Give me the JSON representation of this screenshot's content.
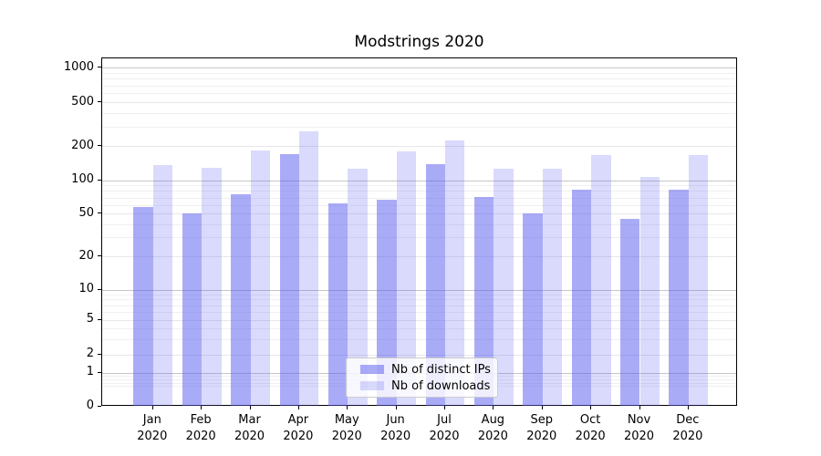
{
  "title": "Modstrings 2020",
  "chart_data": {
    "type": "bar",
    "title": "Modstrings 2020",
    "categories": [
      "Jan 2020",
      "Feb 2020",
      "Mar 2020",
      "Apr 2020",
      "May 2020",
      "Jun 2020",
      "Jul 2020",
      "Aug 2020",
      "Sep 2020",
      "Oct 2020",
      "Nov 2020",
      "Dec 2020"
    ],
    "series": [
      {
        "name": "Nb of distinct IPs",
        "color": "rgba(85,87,240,0.5)",
        "values": [
          57,
          50,
          75,
          170,
          62,
          67,
          139,
          71,
          50,
          82,
          45,
          82
        ]
      },
      {
        "name": "Nb of downloads",
        "color": "rgba(85,87,240,0.22)",
        "values": [
          137,
          128,
          185,
          272,
          127,
          180,
          224,
          126,
          126,
          166,
          108,
          166
        ]
      }
    ],
    "yscale": "symlog",
    "ylim": [
      0,
      1320
    ],
    "yticks": [
      0,
      1,
      2,
      5,
      10,
      20,
      50,
      100,
      200,
      500,
      1000
    ],
    "gridlines": {
      "major": [
        1,
        10,
        100,
        1000
      ],
      "mid": [
        2,
        5,
        20,
        50,
        200,
        500
      ],
      "minor": [
        0.6,
        0.7,
        0.8,
        0.9,
        3,
        4,
        6,
        7,
        8,
        9,
        30,
        40,
        60,
        70,
        80,
        90,
        300,
        400,
        600,
        700,
        800,
        900
      ]
    },
    "grid": "on",
    "legend_position": "lower center",
    "xlabel": "",
    "ylabel": ""
  },
  "colors": {
    "bar_dark": "rgba(85,87,240,0.5)",
    "bar_light": "rgba(85,87,240,0.22)",
    "grid_major": "#c6c6c6",
    "grid_minor": "#f0f0f0",
    "background": "#ffffff"
  }
}
